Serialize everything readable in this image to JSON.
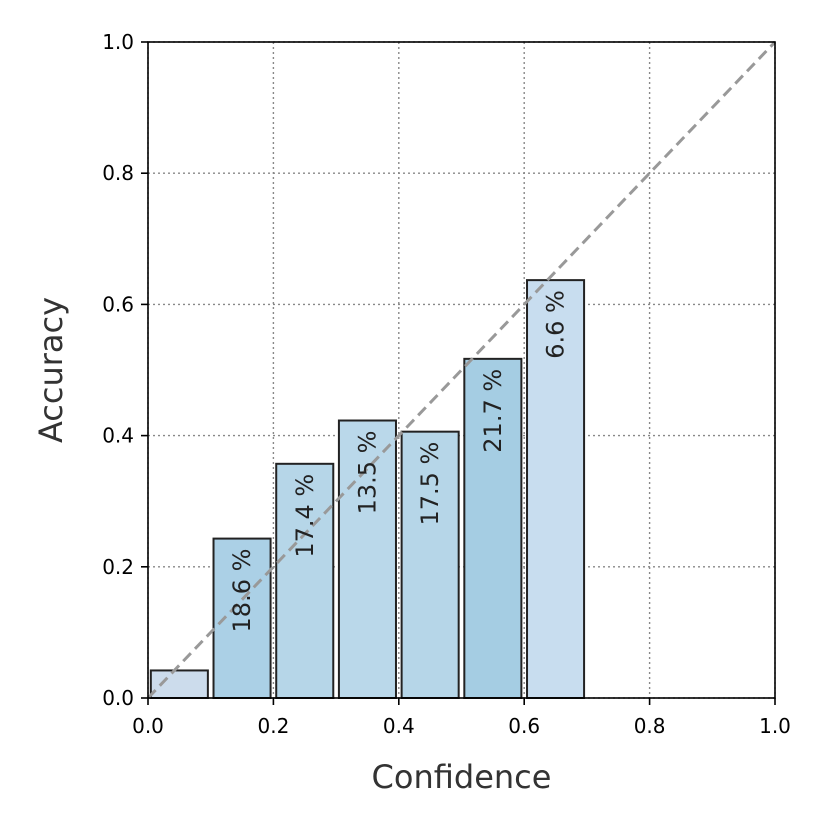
{
  "chart_data": {
    "type": "bar",
    "title": "",
    "xlabel": "Confidence",
    "ylabel": "Accuracy",
    "xlim": [
      0.0,
      1.0
    ],
    "ylim": [
      0.0,
      1.0
    ],
    "grid": true,
    "grid_style": "dotted",
    "bin_edges": [
      0.0,
      0.1,
      0.2,
      0.3,
      0.4,
      0.5,
      0.6,
      0.7,
      0.8,
      0.9,
      1.0
    ],
    "values": [
      0.042,
      0.243,
      0.357,
      0.423,
      0.406,
      0.517,
      0.637,
      0.0,
      0.0,
      0.0
    ],
    "percent_labels": [
      "",
      "18.6 %",
      "17.4 %",
      "13.5 %",
      "17.5 %",
      "21.7 %",
      "6.6 %",
      "",
      "",
      ""
    ],
    "bar_colors": [
      "#ccdcec",
      "#abd0e6",
      "#b6d6e8",
      "#bad8ea",
      "#b6d6e8",
      "#a5cde3",
      "#c8ddef",
      "#c8ddef",
      "#c8ddef",
      "#c8ddef"
    ],
    "bar_edge_color": "#222222",
    "reference_line": {
      "from": [
        0,
        0
      ],
      "to": [
        1,
        1
      ],
      "style": "dashed",
      "color": "#999999"
    },
    "xticks": [
      "0.0",
      "0.2",
      "0.4",
      "0.6",
      "0.8",
      "1.0"
    ],
    "yticks": [
      "0.0",
      "0.2",
      "0.4",
      "0.6",
      "0.8",
      "1.0"
    ]
  }
}
